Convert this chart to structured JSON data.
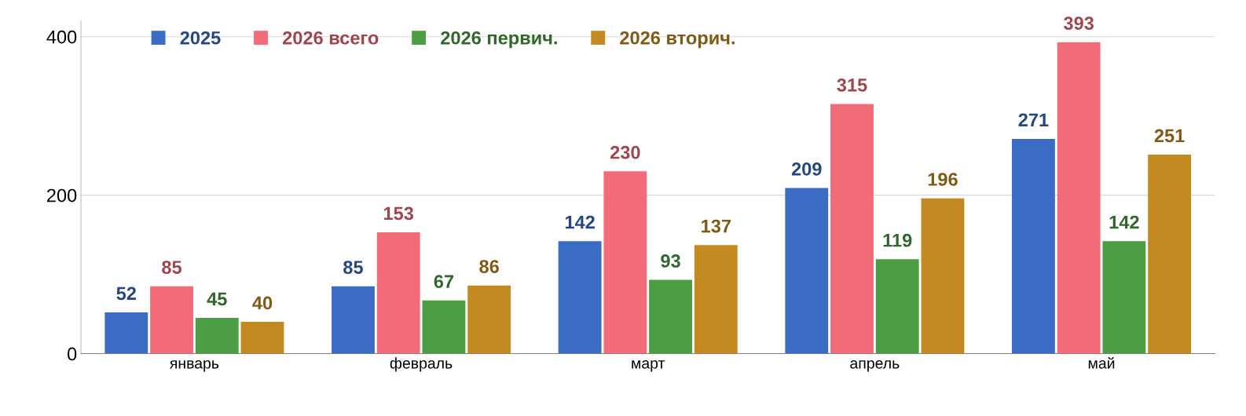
{
  "chart_data": {
    "type": "bar",
    "categories": [
      "январь",
      "февраль",
      "март",
      "апрель",
      "май"
    ],
    "series": [
      {
        "name": "2025",
        "color": "#3a6cc4",
        "values": [
          52,
          85,
          142,
          209,
          271
        ]
      },
      {
        "name": "2026 всего",
        "color": "#f26b78",
        "values": [
          85,
          153,
          230,
          315,
          393
        ]
      },
      {
        "name": "2026 первич.",
        "color": "#4c9e44",
        "values": [
          45,
          67,
          93,
          119,
          142
        ]
      },
      {
        "name": "2026 вторич.",
        "color": "#c38a22",
        "values": [
          40,
          86,
          137,
          196,
          251
        ]
      }
    ],
    "ylim": [
      0,
      420
    ],
    "yticks": [
      0,
      200,
      400
    ],
    "grid": "y",
    "legend": "top",
    "data_labels": true
  }
}
